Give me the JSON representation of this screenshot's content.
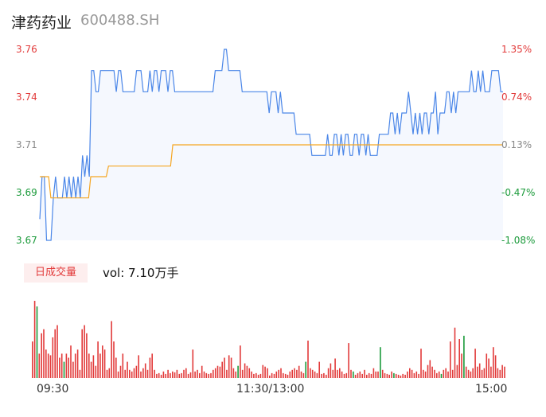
{
  "header": {
    "name": "津药药业",
    "code": "600488.SH"
  },
  "volume_badge": "日成交量",
  "volume_text": "vol: 7.10万手",
  "colors": {
    "up": "#e23a3a",
    "down": "#1a9a3a",
    "flat": "#888888",
    "price_line": "#4a86e8",
    "avg_line": "#f5a623",
    "fill": "#f5f8fe"
  },
  "chart_data": [
    {
      "type": "line",
      "title": "",
      "xlabel": "",
      "ylabel": "",
      "ylim": [
        3.67,
        3.76
      ],
      "y_ticks": [
        "3.76",
        "3.74",
        "3.71",
        "3.69",
        "3.67"
      ],
      "y2_ticks": [
        "1.35%",
        "0.74%",
        "0.13%",
        "-0.47%",
        "-1.08%"
      ],
      "x_ticks": [
        "09:30",
        "11:30/13:00",
        "15:00"
      ],
      "grid": false,
      "series": [
        {
          "values": [
            3.68,
            3.7,
            3.7,
            3.67,
            3.67,
            3.67,
            3.69,
            3.7,
            3.69,
            3.69,
            3.69,
            3.7,
            3.69,
            3.7,
            3.69,
            3.7,
            3.69,
            3.7,
            3.69,
            3.71,
            3.7,
            3.71,
            3.7,
            3.75,
            3.75,
            3.74,
            3.74,
            3.75,
            3.75,
            3.75,
            3.75,
            3.75,
            3.75,
            3.75,
            3.74,
            3.75,
            3.75,
            3.74,
            3.74,
            3.74,
            3.74,
            3.74,
            3.74,
            3.75,
            3.75,
            3.75,
            3.74,
            3.74,
            3.74,
            3.75,
            3.74,
            3.75,
            3.75,
            3.74,
            3.75,
            3.75,
            3.75,
            3.74,
            3.75,
            3.75,
            3.74,
            3.74,
            3.74,
            3.74,
            3.74,
            3.74,
            3.74,
            3.74,
            3.74,
            3.74,
            3.74,
            3.74,
            3.74,
            3.74,
            3.74,
            3.74,
            3.74,
            3.74,
            3.75,
            3.75,
            3.75,
            3.75,
            3.76,
            3.76,
            3.75,
            3.75,
            3.75,
            3.75,
            3.75,
            3.75,
            3.74,
            3.74,
            3.74,
            3.74,
            3.74,
            3.74,
            3.74,
            3.74,
            3.74,
            3.74,
            3.74,
            3.74,
            3.73,
            3.74,
            3.74,
            3.74,
            3.73,
            3.74,
            3.73,
            3.73,
            3.73,
            3.73,
            3.73,
            3.73,
            3.72,
            3.72,
            3.72,
            3.72,
            3.72,
            3.72,
            3.72,
            3.71,
            3.71,
            3.71,
            3.71,
            3.71,
            3.71,
            3.71,
            3.72,
            3.71,
            3.71,
            3.72,
            3.72,
            3.71,
            3.72,
            3.71,
            3.72,
            3.72,
            3.71,
            3.71,
            3.72,
            3.72,
            3.71,
            3.72,
            3.72,
            3.71,
            3.72,
            3.71,
            3.71,
            3.71,
            3.71,
            3.72,
            3.72,
            3.72,
            3.72,
            3.72,
            3.73,
            3.73,
            3.72,
            3.73,
            3.72,
            3.73,
            3.73,
            3.73,
            3.74,
            3.73,
            3.72,
            3.73,
            3.72,
            3.73,
            3.72,
            3.73,
            3.73,
            3.72,
            3.73,
            3.73,
            3.74,
            3.72,
            3.73,
            3.73,
            3.73,
            3.74,
            3.74,
            3.73,
            3.74,
            3.73,
            3.74,
            3.74,
            3.74,
            3.74,
            3.74,
            3.74,
            3.75,
            3.74,
            3.74,
            3.75,
            3.74,
            3.75,
            3.74,
            3.74,
            3.74,
            3.75,
            3.75,
            3.75,
            3.75,
            3.74,
            3.74
          ]
        },
        {
          "values": [
            3.7,
            3.7,
            3.7,
            3.7,
            3.7,
            3.69,
            3.69,
            3.69,
            3.69,
            3.69,
            3.69,
            3.69,
            3.69,
            3.69,
            3.69,
            3.69,
            3.69,
            3.69,
            3.69,
            3.69,
            3.69,
            3.69,
            3.69,
            3.7,
            3.7,
            3.7,
            3.7,
            3.7,
            3.7,
            3.7,
            3.7,
            3.705,
            3.705,
            3.705,
            3.705,
            3.705,
            3.705,
            3.705,
            3.705,
            3.705,
            3.705,
            3.705,
            3.705,
            3.705,
            3.705,
            3.705,
            3.705,
            3.705,
            3.705,
            3.705,
            3.705,
            3.705,
            3.705,
            3.705,
            3.705,
            3.705,
            3.705,
            3.705,
            3.705,
            3.705,
            3.715,
            3.715,
            3.715,
            3.715,
            3.715,
            3.715,
            3.715,
            3.715,
            3.715,
            3.715,
            3.715,
            3.715,
            3.715,
            3.715,
            3.715,
            3.715,
            3.715,
            3.715,
            3.715,
            3.715,
            3.715,
            3.715,
            3.715,
            3.715,
            3.715,
            3.715,
            3.715,
            3.715,
            3.715,
            3.715,
            3.715,
            3.715,
            3.715,
            3.715,
            3.715,
            3.715,
            3.715,
            3.715,
            3.715,
            3.715,
            3.715,
            3.715,
            3.715,
            3.715,
            3.715,
            3.715,
            3.715,
            3.715,
            3.715,
            3.715,
            3.715,
            3.715,
            3.715,
            3.715,
            3.715,
            3.715,
            3.715,
            3.715,
            3.715,
            3.715,
            3.715,
            3.715,
            3.715,
            3.715,
            3.715,
            3.715,
            3.715,
            3.715,
            3.715,
            3.715,
            3.715,
            3.715,
            3.715,
            3.715,
            3.715,
            3.715,
            3.715,
            3.715,
            3.715,
            3.715,
            3.715,
            3.715,
            3.715,
            3.715,
            3.715,
            3.715,
            3.715,
            3.715,
            3.715,
            3.715,
            3.715,
            3.715,
            3.715,
            3.715,
            3.715,
            3.715,
            3.715,
            3.715,
            3.715,
            3.715,
            3.715,
            3.715,
            3.715,
            3.715,
            3.715,
            3.715,
            3.715,
            3.715,
            3.715,
            3.715,
            3.715,
            3.715,
            3.715,
            3.715,
            3.715,
            3.715,
            3.715,
            3.715,
            3.715,
            3.715,
            3.715,
            3.715,
            3.715,
            3.715,
            3.715,
            3.715,
            3.715,
            3.715,
            3.715,
            3.715,
            3.715,
            3.715,
            3.715,
            3.715,
            3.715,
            3.715,
            3.715,
            3.715,
            3.715,
            3.715,
            3.715,
            3.715,
            3.715,
            3.715,
            3.715,
            3.715,
            3.715,
            3.715,
            3.715,
            3.715
          ]
        }
      ]
    },
    {
      "type": "bar",
      "title": "",
      "xlabel": "",
      "ylabel": "",
      "values": [
        45,
        95,
        88,
        30,
        55,
        60,
        35,
        30,
        28,
        50,
        60,
        65,
        25,
        30,
        20,
        30,
        25,
        40,
        20,
        30,
        35,
        10,
        60,
        65,
        55,
        30,
        20,
        28,
        15,
        45,
        30,
        40,
        35,
        10,
        12,
        70,
        45,
        25,
        8,
        15,
        30,
        10,
        20,
        10,
        8,
        12,
        15,
        28,
        8,
        12,
        18,
        10,
        25,
        30,
        10,
        5,
        6,
        4,
        8,
        5,
        10,
        6,
        8,
        7,
        10,
        5,
        6,
        10,
        12,
        5,
        7,
        35,
        8,
        10,
        6,
        15,
        8,
        6,
        5,
        6,
        10,
        12,
        15,
        14,
        20,
        25,
        10,
        28,
        25,
        12,
        8,
        15,
        40,
        10,
        18,
        15,
        12,
        8,
        5,
        6,
        4,
        5,
        16,
        14,
        12,
        3,
        6,
        5,
        8,
        10,
        12,
        6,
        5,
        4,
        8,
        10,
        12,
        10,
        15,
        8,
        6,
        20,
        46,
        12,
        10,
        8,
        6,
        20,
        5,
        6,
        4,
        12,
        18,
        10,
        24,
        10,
        12,
        8,
        5,
        6,
        43,
        10,
        8,
        4,
        6,
        8,
        5,
        10,
        4,
        6,
        5,
        12,
        8,
        8,
        38,
        10,
        6,
        5,
        4,
        8,
        6,
        5,
        4,
        3,
        5,
        4,
        8,
        12,
        10,
        6,
        8,
        5,
        36,
        10,
        8,
        16,
        22,
        14,
        10,
        6,
        8,
        5,
        10,
        12,
        8,
        45,
        10,
        62,
        16,
        48,
        30,
        52,
        14,
        10,
        8,
        12,
        36,
        14,
        18,
        10,
        12,
        30,
        24,
        14,
        38,
        28,
        12,
        10,
        16,
        14
      ],
      "colors": [
        "red",
        "red",
        "green",
        "red",
        "red",
        "red",
        "red",
        "red",
        "red",
        "red",
        "red",
        "red",
        "red",
        "red",
        "green",
        "red",
        "red",
        "red",
        "red",
        "red",
        "red",
        "red",
        "red",
        "red",
        "red",
        "red",
        "red",
        "red",
        "red",
        "red",
        "red",
        "red",
        "red",
        "red",
        "red",
        "red",
        "red",
        "red",
        "red",
        "red",
        "red",
        "red",
        "red",
        "red",
        "red",
        "red",
        "red",
        "red",
        "red",
        "red",
        "red",
        "red",
        "red",
        "red",
        "red",
        "red",
        "red",
        "red",
        "red",
        "red",
        "red",
        "red",
        "red",
        "red",
        "red",
        "red",
        "red",
        "red",
        "red",
        "red",
        "red",
        "red",
        "red",
        "red",
        "red",
        "red",
        "red",
        "red",
        "red",
        "red",
        "red",
        "red",
        "red",
        "red",
        "red",
        "red",
        "red",
        "red",
        "red",
        "red",
        "red",
        "green",
        "red",
        "red",
        "red",
        "red",
        "red",
        "red",
        "red",
        "red",
        "red",
        "red",
        "red",
        "red",
        "red",
        "red",
        "red",
        "red",
        "red",
        "red",
        "red",
        "red",
        "red",
        "red",
        "red",
        "red",
        "red",
        "red",
        "red",
        "red",
        "red",
        "green",
        "red",
        "red",
        "red",
        "red",
        "red",
        "red",
        "red",
        "red",
        "red",
        "red",
        "red",
        "red",
        "red",
        "red",
        "red",
        "red",
        "red",
        "red",
        "red",
        "red",
        "green",
        "red",
        "red",
        "red",
        "red",
        "red",
        "red",
        "red",
        "red",
        "red",
        "red",
        "red",
        "green",
        "red",
        "red",
        "red",
        "red",
        "red",
        "green",
        "red",
        "red",
        "red",
        "red",
        "red",
        "red",
        "red",
        "red",
        "red",
        "red",
        "red",
        "red",
        "red",
        "red",
        "red",
        "red",
        "red",
        "red",
        "red",
        "red",
        "green",
        "red",
        "red",
        "red",
        "red",
        "red",
        "red",
        "red",
        "red",
        "red",
        "green",
        "red",
        "red",
        "red",
        "red",
        "red",
        "red",
        "red",
        "red",
        "red",
        "red",
        "red",
        "red",
        "red",
        "red",
        "red",
        "red",
        "red",
        "red",
        "red",
        "red",
        "red",
        "red",
        "red",
        "red",
        "red",
        "red",
        "red",
        "red",
        "red"
      ]
    }
  ]
}
